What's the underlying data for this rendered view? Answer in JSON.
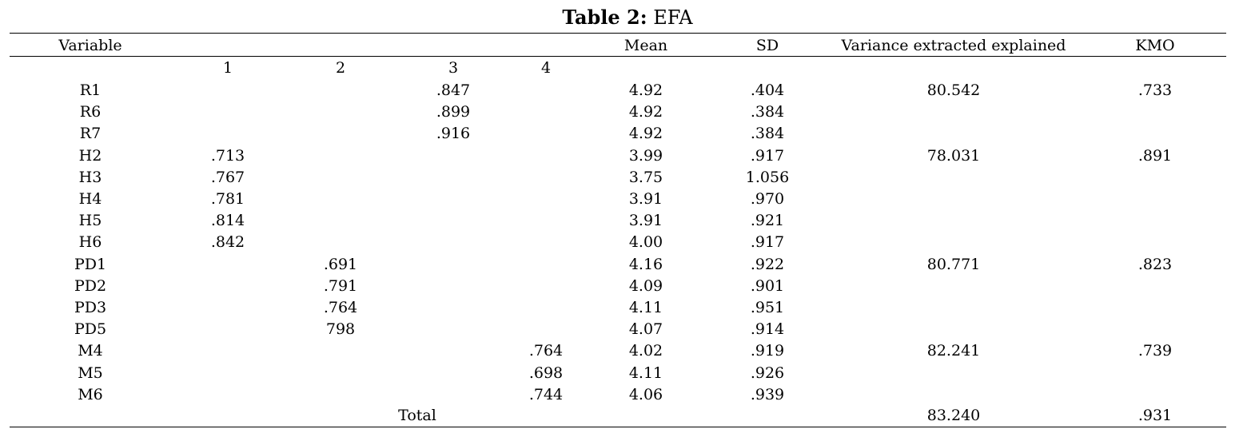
{
  "caption": {
    "label": "Table 2:",
    "title": " EFA"
  },
  "header": {
    "variable": "Variable",
    "mean": "Mean",
    "sd": "SD",
    "variance": "Variance extracted explained",
    "kmo": "KMO"
  },
  "factor_headers": [
    "1",
    "2",
    "3",
    "4"
  ],
  "rows": [
    {
      "variable": "R1",
      "f1": "",
      "f2": "",
      "f3": ".847",
      "f4": "",
      "mean": "4.92",
      "sd": ".404",
      "variance": "80.542",
      "kmo": ".733"
    },
    {
      "variable": "R6",
      "f1": "",
      "f2": "",
      "f3": ".899",
      "f4": "",
      "mean": "4.92",
      "sd": ".384",
      "variance": "",
      "kmo": ""
    },
    {
      "variable": "R7",
      "f1": "",
      "f2": "",
      "f3": ".916",
      "f4": "",
      "mean": "4.92",
      "sd": ".384",
      "variance": "",
      "kmo": ""
    },
    {
      "variable": "H2",
      "f1": ".713",
      "f2": "",
      "f3": "",
      "f4": "",
      "mean": "3.99",
      "sd": ".917",
      "variance": "78.031",
      "kmo": ".891"
    },
    {
      "variable": "H3",
      "f1": ".767",
      "f2": "",
      "f3": "",
      "f4": "",
      "mean": "3.75",
      "sd": "1.056",
      "variance": "",
      "kmo": ""
    },
    {
      "variable": "H4",
      "f1": ".781",
      "f2": "",
      "f3": "",
      "f4": "",
      "mean": "3.91",
      "sd": ".970",
      "variance": "",
      "kmo": ""
    },
    {
      "variable": "H5",
      "f1": ".814",
      "f2": "",
      "f3": "",
      "f4": "",
      "mean": "3.91",
      "sd": ".921",
      "variance": "",
      "kmo": ""
    },
    {
      "variable": "H6",
      "f1": ".842",
      "f2": "",
      "f3": "",
      "f4": "",
      "mean": "4.00",
      "sd": ".917",
      "variance": "",
      "kmo": ""
    },
    {
      "variable": "PD1",
      "f1": "",
      "f2": ".691",
      "f3": "",
      "f4": "",
      "mean": "4.16",
      "sd": ".922",
      "variance": "80.771",
      "kmo": ".823"
    },
    {
      "variable": "PD2",
      "f1": "",
      "f2": ".791",
      "f3": "",
      "f4": "",
      "mean": "4.09",
      "sd": ".901",
      "variance": "",
      "kmo": ""
    },
    {
      "variable": "PD3",
      "f1": "",
      "f2": ".764",
      "f3": "",
      "f4": "",
      "mean": "4.11",
      "sd": ".951",
      "variance": "",
      "kmo": ""
    },
    {
      "variable": "PD5",
      "f1": "",
      "f2": "798",
      "f3": "",
      "f4": "",
      "mean": "4.07",
      "sd": ".914",
      "variance": "",
      "kmo": ""
    },
    {
      "variable": "M4",
      "f1": "",
      "f2": "",
      "f3": "",
      "f4": ".764",
      "mean": "4.02",
      "sd": ".919",
      "variance": "82.241",
      "kmo": ".739"
    },
    {
      "variable": "M5",
      "f1": "",
      "f2": "",
      "f3": "",
      "f4": ".698",
      "mean": "4.11",
      "sd": ".926",
      "variance": "",
      "kmo": ""
    },
    {
      "variable": "M6",
      "f1": "",
      "f2": "",
      "f3": "",
      "f4": ".744",
      "mean": "4.06",
      "sd": ".939",
      "variance": "",
      "kmo": ""
    }
  ],
  "total": {
    "label": "Total",
    "variance": "83.240",
    "kmo": ".931"
  }
}
